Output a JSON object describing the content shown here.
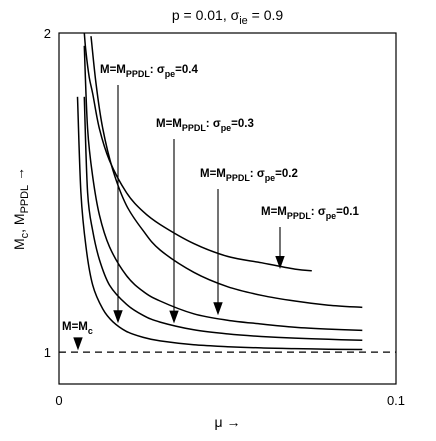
{
  "chart_data": {
    "type": "line",
    "title_parts": [
      "p = 0.01, σ",
      "ie",
      " = 0.9"
    ],
    "xlabel": "μ →",
    "ylabel_parts": [
      "M",
      "c",
      ", M",
      "PPDL",
      " →"
    ],
    "xlim": [
      0,
      0.1
    ],
    "ylim": [
      0.9,
      2.0
    ],
    "xticks": [
      {
        "value": 0,
        "label": "0"
      },
      {
        "value": 0.1,
        "label": "0.1"
      }
    ],
    "yticks": [
      {
        "value": 1,
        "label": "1"
      },
      {
        "value": 2,
        "label": "2"
      }
    ],
    "grid": false,
    "series": [
      {
        "name": "M=M_c",
        "x": [
          0.0055,
          0.0065,
          0.008,
          0.01,
          0.013,
          0.016,
          0.02,
          0.025,
          0.03,
          0.04,
          0.05,
          0.06,
          0.07,
          0.08,
          0.09
        ],
        "y": [
          1.8,
          1.5,
          1.33,
          1.21,
          1.135,
          1.095,
          1.065,
          1.046,
          1.035,
          1.023,
          1.017,
          1.013,
          1.011,
          1.009,
          1.008
        ]
      },
      {
        "name": "M=M_PPDL: σ_pe=0.4",
        "x": [
          0.0075,
          0.0085,
          0.01,
          0.012,
          0.015,
          0.02,
          0.025,
          0.03,
          0.04,
          0.05,
          0.06,
          0.07,
          0.08,
          0.09
        ],
        "y": [
          1.8,
          1.5,
          1.38,
          1.29,
          1.21,
          1.15,
          1.115,
          1.094,
          1.07,
          1.057,
          1.049,
          1.044,
          1.04,
          1.037
        ]
      },
      {
        "name": "M=M_PPDL: σ_pe=0.3",
        "x": [
          0.0075,
          0.0085,
          0.01,
          0.012,
          0.015,
          0.02,
          0.025,
          0.03,
          0.04,
          0.05,
          0.06,
          0.07,
          0.08,
          0.09
        ],
        "y": [
          1.96,
          1.7,
          1.55,
          1.43,
          1.33,
          1.24,
          1.19,
          1.16,
          1.12,
          1.1,
          1.088,
          1.078,
          1.072,
          1.068
        ]
      },
      {
        "name": "M=M_PPDL: σ_pe=0.2",
        "x": [
          0.0095,
          0.011,
          0.013,
          0.016,
          0.02,
          0.025,
          0.03,
          0.04,
          0.05,
          0.06,
          0.07,
          0.08,
          0.09
        ],
        "y": [
          1.99,
          1.84,
          1.7,
          1.57,
          1.46,
          1.38,
          1.32,
          1.25,
          1.205,
          1.178,
          1.16,
          1.147,
          1.14
        ]
      },
      {
        "name": "M=M_PPDL: σ_pe=0.1",
        "x": [
          0.0075,
          0.008,
          0.009,
          0.01,
          0.012,
          0.015,
          0.02,
          0.025,
          0.03,
          0.04,
          0.05,
          0.06,
          0.07,
          0.075
        ],
        "y": [
          2.0,
          1.94,
          1.86,
          1.81,
          1.7,
          1.6,
          1.5,
          1.44,
          1.4,
          1.34,
          1.3,
          1.28,
          1.26,
          1.255
        ]
      }
    ],
    "reference_line": {
      "y": 1,
      "style": "dashed"
    },
    "annotations": [
      {
        "parts": [
          "M=M",
          "PPDL",
          ": σ",
          "pe",
          "=0.4"
        ],
        "arrow_to": {
          "x": 0.018,
          "y": 1.095
        }
      },
      {
        "parts": [
          "M=M",
          "PPDL",
          ": σ",
          "pe",
          "=0.3"
        ],
        "arrow_to": {
          "x": 0.035,
          "y": 1.094
        }
      },
      {
        "parts": [
          "M=M",
          "PPDL",
          ": σ",
          "pe",
          "=0.2"
        ],
        "arrow_to": {
          "x": 0.047,
          "y": 1.12
        }
      },
      {
        "parts": [
          "M=M",
          "PPDL",
          ": σ",
          "pe",
          "=0.1"
        ],
        "arrow_to": {
          "x": 0.067,
          "y": 1.265
        }
      },
      {
        "parts": [
          "M=M",
          "c"
        ],
        "arrow_to": {
          "x": 0.006,
          "y": 1.01
        }
      }
    ]
  }
}
